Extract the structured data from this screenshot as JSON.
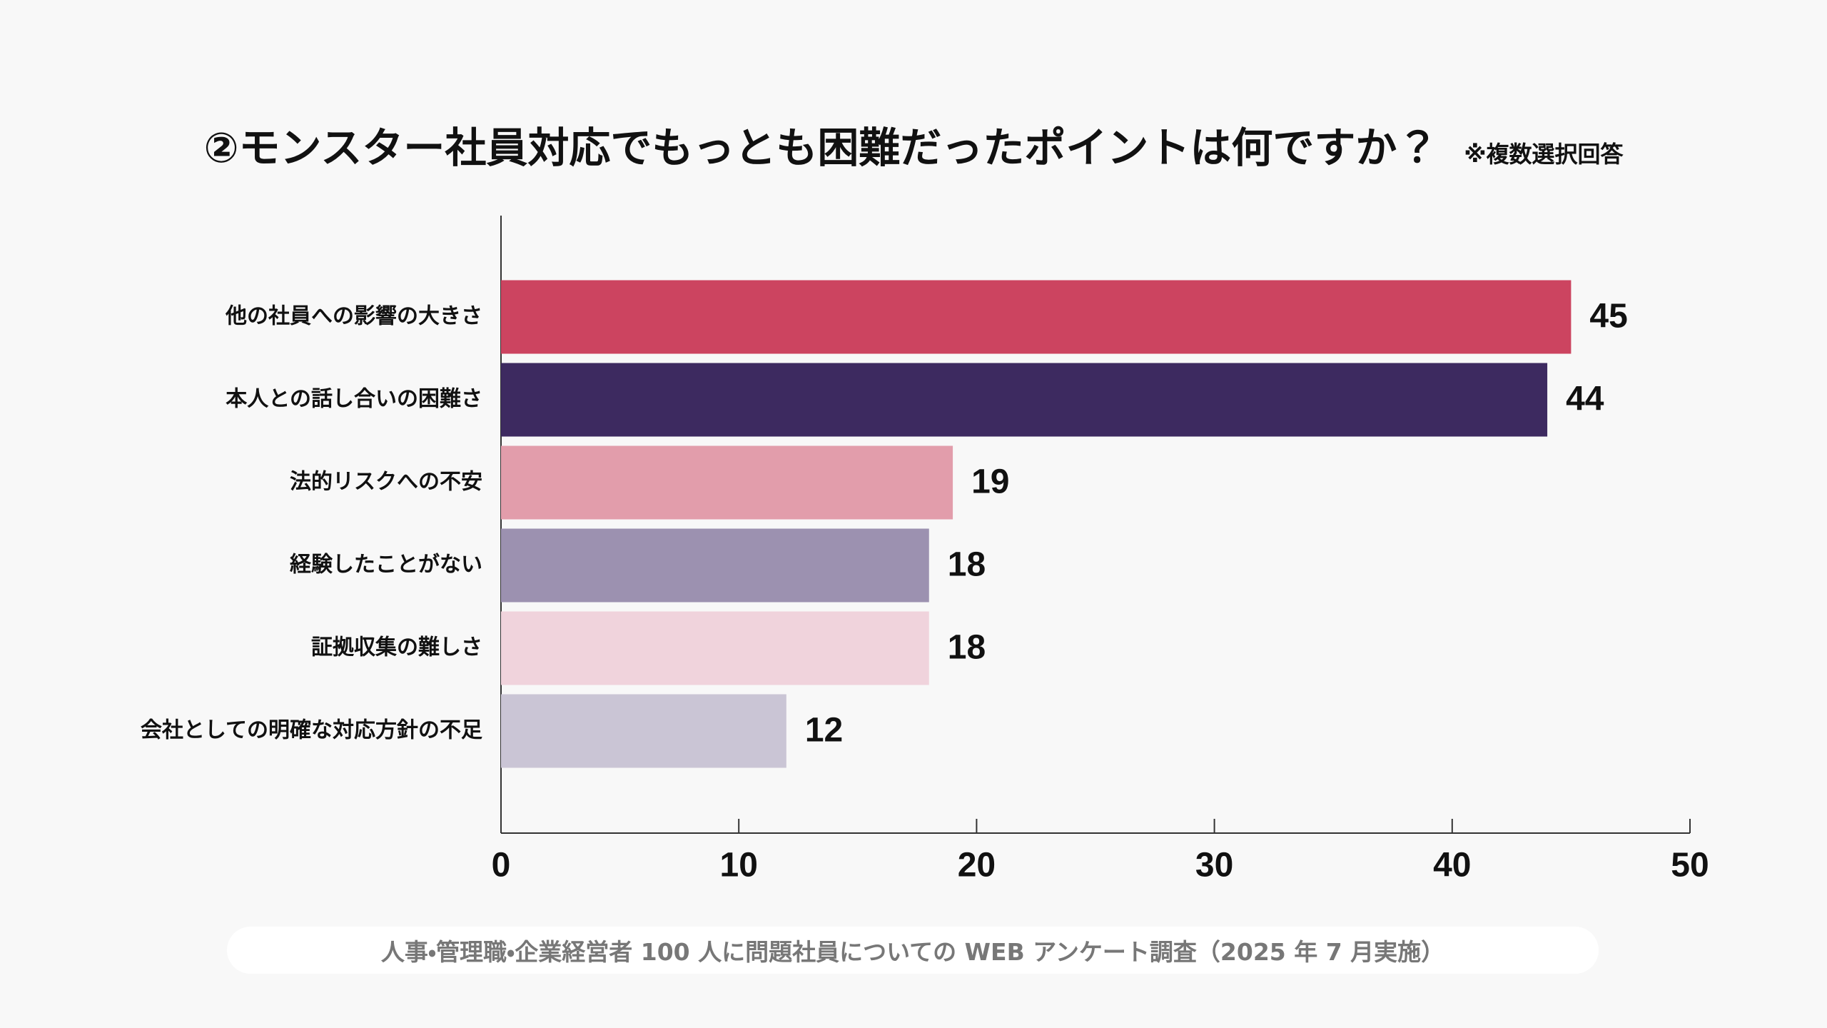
{
  "chart_data": {
    "type": "barh",
    "title": "②モンスター社員対応でもっとも困難だったポイントは何ですか？",
    "subtitle": "※複数選択回答",
    "categories": [
      "他の社員への影響の大きさ",
      "本人との話し合いの困難さ",
      "法的リスクへの不安",
      "経験したことがない",
      "証拠収集の難しさ",
      "会社としての明確な対応方針の不足"
    ],
    "values": [
      45,
      44,
      19,
      18,
      18,
      12
    ],
    "colors": [
      "#cc4460",
      "#3d2a60",
      "#e29dab",
      "#9c91b0",
      "#f0d3dc",
      "#cac5d5"
    ],
    "xlim": [
      0,
      50
    ],
    "xticks": [
      0,
      10,
      20,
      30,
      40,
      50
    ],
    "source": "人事・管理職・企業経営者 100 人に問題社員についての WEB アンケート調査（2025 年 7 月実施）"
  }
}
